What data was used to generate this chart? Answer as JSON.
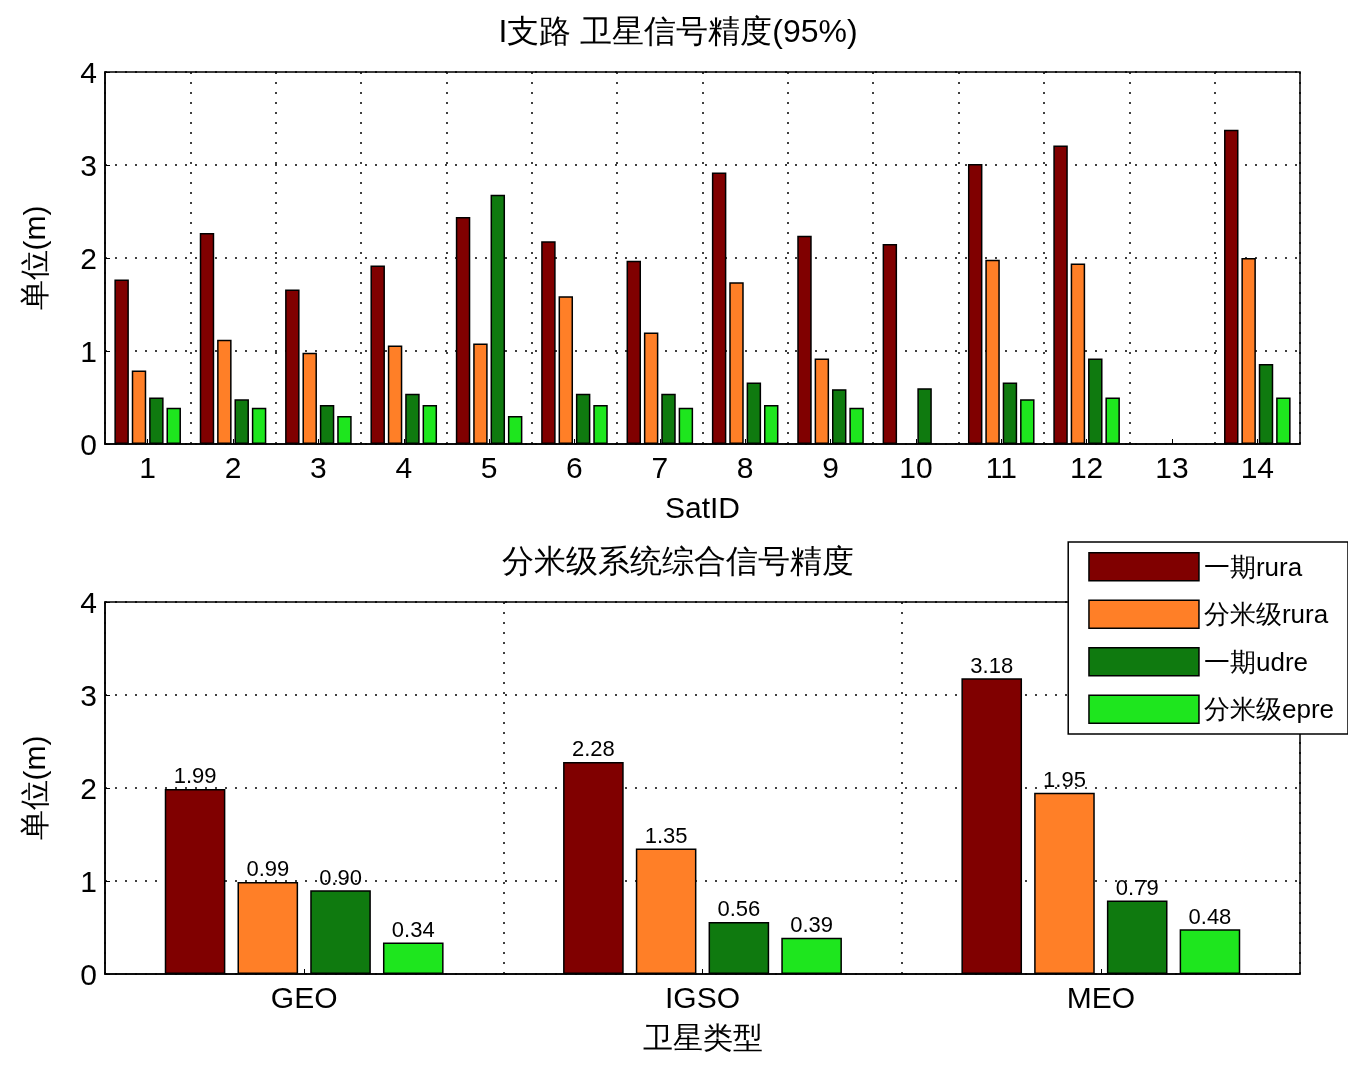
{
  "chart_data": [
    {
      "type": "bar",
      "title": "I支路 卫星信号精度(95%)",
      "xlabel": "SatID",
      "ylabel": "单位(m)",
      "categories": [
        "1",
        "2",
        "3",
        "4",
        "5",
        "6",
        "7",
        "8",
        "9",
        "10",
        "11",
        "12",
        "13",
        "14"
      ],
      "ylim": [
        0,
        4
      ],
      "yticks": [
        0,
        1,
        2,
        3,
        4
      ],
      "grid": true,
      "legend": false,
      "series": [
        {
          "color": "#800000",
          "values": [
            1.77,
            2.27,
            1.66,
            1.92,
            2.44,
            2.18,
            1.97,
            2.92,
            2.24,
            2.15,
            3.01,
            3.21,
            null,
            3.38
          ]
        },
        {
          "color": "#ff7f27",
          "values": [
            0.79,
            1.12,
            0.98,
            1.06,
            1.08,
            1.59,
            1.2,
            1.74,
            0.92,
            null,
            1.98,
            1.94,
            null,
            2.0
          ]
        },
        {
          "color": "#0f7a0f",
          "values": [
            0.5,
            0.48,
            0.42,
            0.54,
            2.68,
            0.54,
            0.54,
            0.66,
            0.59,
            0.6,
            0.66,
            0.92,
            null,
            0.86
          ]
        },
        {
          "color": "#1ee61e",
          "values": [
            0.39,
            0.39,
            0.3,
            0.42,
            0.3,
            0.42,
            0.39,
            0.42,
            0.39,
            null,
            0.48,
            0.5,
            null,
            0.5
          ]
        }
      ]
    },
    {
      "type": "bar",
      "title": "分米级系统综合信号精度",
      "xlabel": "卫星类型",
      "ylabel": "单位(m)",
      "categories": [
        "GEO",
        "IGSO",
        "MEO"
      ],
      "ylim": [
        0,
        4
      ],
      "yticks": [
        0,
        1,
        2,
        3,
        4
      ],
      "grid": true,
      "legend": "top right",
      "series": [
        {
          "name": "一期rura",
          "color": "#800000",
          "values": [
            1.99,
            2.28,
            3.18
          ],
          "value_labels": [
            "1.99",
            "2.28",
            "3.18"
          ]
        },
        {
          "name": "分米级rura",
          "color": "#ff7f27",
          "values": [
            0.99,
            1.35,
            1.95
          ],
          "value_labels": [
            "0.99",
            "1.35",
            "1.95"
          ]
        },
        {
          "name": "一期udre",
          "color": "#0f7a0f",
          "values": [
            0.9,
            0.56,
            0.79
          ],
          "value_labels": [
            "0.90",
            "0.56",
            "0.79"
          ]
        },
        {
          "name": "分米级epre",
          "color": "#1ee61e",
          "values": [
            0.34,
            0.39,
            0.48
          ],
          "value_labels": [
            "0.34",
            "0.39",
            "0.48"
          ]
        }
      ]
    }
  ]
}
